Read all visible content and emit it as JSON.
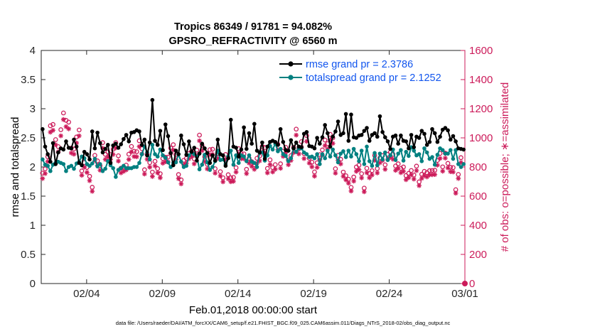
{
  "chart_data": {
    "type": "line",
    "title": "Tropics 86349 / 91781 = 94.082%",
    "subtitle": "GPSRO_REFRACTIVITY @ 6560 m",
    "xlabel": "Feb.01,2018 00:00:00 start",
    "ylabel": "rmse and totalspread",
    "ylabel_right": "# of obs: o=possible; ∗=assimilated",
    "footnote": "data file: /Users/raeder/DAI/ATM_forcXX/CAM6_setup/f.e21.FHIST_BGC.f09_025.CAM6assim.011/Diags_NTrS_2018-02/obs_diag_output.nc",
    "x_tick_labels": [
      "02/04",
      "02/09",
      "02/14",
      "02/19",
      "02/24",
      "03/01"
    ],
    "x_tick_days": [
      3,
      8,
      13,
      18,
      23,
      28
    ],
    "xlim_days": [
      0,
      28
    ],
    "y_ticks": [
      "0",
      "0.5",
      "1",
      "1.5",
      "2",
      "2.5",
      "3",
      "3.5",
      "4"
    ],
    "ylim": [
      0,
      4
    ],
    "y_right_ticks": [
      "0",
      "200",
      "400",
      "600",
      "800",
      "1000",
      "1200",
      "1400",
      "1600"
    ],
    "ylim_right": [
      0,
      1600
    ],
    "legend": [
      "rmse grand pr = 2.3786",
      "totalspread grand pr = 2.1252"
    ],
    "legend_position": "top-right",
    "colors": {
      "rmse": "#000000",
      "spread": "#008080",
      "obs": "#cc1b5a",
      "legend_text": "#1155ee"
    },
    "series": [
      {
        "name": "rmse",
        "values": [
          2.65,
          2.35,
          2.22,
          2.09,
          2.41,
          2.05,
          2.25,
          2.32,
          2.3,
          2.44,
          2.33,
          2.32,
          2.47,
          2.35,
          2.07,
          2.03,
          2.26,
          2.22,
          2.13,
          2.61,
          2.32,
          2.59,
          2.41,
          2.25,
          2.31,
          2.38,
          2.07,
          2.37,
          2.4,
          2.33,
          2.39,
          2.48,
          2.55,
          2.44,
          2.59,
          2.6,
          2.63,
          2.61,
          2.38,
          2.47,
          2.2,
          2.42,
          3.15,
          2.45,
          2.38,
          2.62,
          2.29,
          2.73,
          2.53,
          2.24,
          2.03,
          2.28,
          2.22,
          2.54,
          2.39,
          2.21,
          2.44,
          2.26,
          2.33,
          2.11,
          2.23,
          2.4,
          2.32,
          2.24,
          2.07,
          2.2,
          2.11,
          2.47,
          2.22,
          2.2,
          2.02,
          2.15,
          2.81,
          2.35,
          2.33,
          2.18,
          2.3,
          2.68,
          2.31,
          2.58,
          2.4,
          2.74,
          2.28,
          2.25,
          2.42,
          2.14,
          2.35,
          2.43,
          2.45,
          2.43,
          2.38,
          2.65,
          2.43,
          2.29,
          2.28,
          2.46,
          2.32,
          2.42,
          2.35,
          2.34,
          2.57,
          2.6,
          2.36,
          2.35,
          2.32,
          2.5,
          2.4,
          2.51,
          2.72,
          2.58,
          2.35,
          2.52,
          2.61,
          2.78,
          2.55,
          2.58,
          2.91,
          2.45,
          2.9,
          2.51,
          2.5,
          2.54,
          2.55,
          2.62,
          2.67,
          2.45,
          2.55,
          2.58,
          2.52,
          2.87,
          2.6,
          2.51,
          2.44,
          2.31,
          2.52,
          2.54,
          2.4,
          2.54,
          2.45,
          2.44,
          2.32,
          2.55,
          2.34,
          2.52,
          2.5,
          2.62,
          2.57,
          2.38,
          2.43,
          2.65,
          2.58,
          2.43,
          2.52,
          2.64,
          2.67,
          2.63,
          2.47,
          2.53,
          2.44,
          2.32,
          2.31,
          2.3
        ]
      },
      {
        "name": "totalspread",
        "values": [
          2.13,
          2.04,
          2.02,
          1.93,
          2.04,
          2.07,
          2.09,
          2.07,
          2.05,
          1.93,
          2.0,
          2.02,
          1.97,
          2.06,
          2.09,
          2.18,
          2.15,
          2.05,
          2.02,
          2.06,
          2.14,
          2.01,
          2.05,
          1.93,
          1.97,
          2.1,
          2.03,
          1.98,
          1.83,
          1.95,
          1.98,
          2.02,
          1.98,
          1.98,
          1.98,
          2.0,
          2.0,
          2.07,
          2.22,
          2.35,
          2.25,
          2.13,
          2.38,
          2.22,
          2.18,
          2.3,
          2.2,
          2.16,
          2.08,
          2.0,
          2.07,
          2.08,
          2.22,
          2.09,
          2.0,
          2.02,
          2.2,
          2.25,
          2.22,
          2.18,
          1.96,
          2.04,
          2.21,
          2.08,
          1.95,
          2.0,
          2.1,
          2.28,
          2.12,
          2.13,
          2.05,
          2.18,
          2.28,
          2.04,
          2.2,
          2.07,
          2.2,
          2.18,
          2.1,
          2.2,
          2.09,
          2.07,
          2.0,
          2.25,
          2.25,
          2.11,
          2.2,
          2.36,
          2.3,
          2.4,
          2.27,
          2.31,
          2.22,
          2.19,
          2.1,
          2.15,
          2.32,
          2.26,
          2.32,
          2.32,
          2.25,
          2.22,
          2.17,
          2.18,
          2.15,
          2.22,
          2.05,
          2.22,
          2.15,
          2.28,
          2.18,
          2.3,
          2.2,
          2.08,
          2.23,
          2.27,
          2.17,
          2.28,
          2.18,
          2.31,
          2.22,
          2.1,
          2.28,
          2.05,
          2.35,
          2.1,
          2.02,
          2.24,
          2.03,
          2.23,
          2.13,
          2.25,
          2.12,
          2.2,
          2.3,
          2.12,
          2.23,
          2.29,
          2.11,
          2.26,
          2.19,
          2.34,
          2.28,
          2.2,
          2.22,
          2.1,
          2.32,
          2.25,
          2.14,
          2.17,
          2.04,
          2.21,
          2.32,
          2.29,
          2.23,
          2.23,
          2.29,
          2.14,
          2.29,
          2.05,
          2.0,
          2.05
        ]
      },
      {
        "name": "possible",
        "values": [
          758,
          787,
          870,
          1083,
          1092,
          988,
          940,
          1056,
          1171,
          1120,
          1108,
          930,
          923,
          1006,
          1054,
          773,
          830,
          797,
          736,
          661,
          880,
          842,
          809,
          967,
          887,
          903,
          885,
          922,
          968,
          877,
          792,
          800,
          813,
          888,
          941,
          908,
          905,
          980,
          926,
          781,
          888,
          830,
          765,
          839,
          789,
          754,
          858,
          867,
          868,
          930,
          953,
          886,
          748,
          712,
          846,
          859,
          892,
          908,
          856,
          916,
          1019,
          948,
          871,
          818,
          919,
          922,
          788,
          893,
          768,
          726,
          886,
          747,
          726,
          729,
          795,
          926,
          891,
          890,
          784,
          860,
          837,
          815,
          860,
          875,
          940,
          934,
          790,
          849,
          796,
          816,
          956,
          822,
          908,
          935,
          848,
          878,
          935,
          1060,
          925,
          974,
          892,
          1015,
          860,
          833,
          766,
          829,
          885,
          917,
          985,
          960,
          1024,
          1000,
          788,
          880,
          853,
          765,
          740,
          716,
          660,
          731,
          800,
          813,
          754,
          655,
          791,
          755,
          775,
          879,
          789,
          862,
          878,
          815,
          887,
          901,
          887,
          807,
          822,
          791,
          800,
          741,
          756,
          776,
          745,
          806,
          698,
          750,
          770,
          761,
          775,
          776,
          778,
          845,
          893,
          801,
          895,
          825,
          798,
          796,
          644,
          749,
          864
        ]
      },
      {
        "name": "assimilated",
        "values": [
          721,
          755,
          837,
          1039,
          1052,
          953,
          904,
          1014,
          1126,
          1077,
          1062,
          896,
          888,
          965,
          1014,
          743,
          799,
          763,
          706,
          633,
          844,
          811,
          778,
          929,
          852,
          868,
          852,
          886,
          931,
          841,
          760,
          770,
          780,
          852,
          904,
          872,
          870,
          940,
          890,
          752,
          853,
          799,
          735,
          808,
          760,
          726,
          826,
          836,
          834,
          893,
          916,
          851,
          720,
          684,
          815,
          826,
          857,
          873,
          822,
          880,
          980,
          912,
          838,
          787,
          883,
          887,
          758,
          860,
          739,
          698,
          852,
          719,
          699,
          702,
          765,
          890,
          857,
          856,
          755,
          827,
          805,
          784,
          827,
          842,
          904,
          898,
          760,
          817,
          766,
          785,
          919,
          791,
          873,
          899,
          816,
          845,
          899,
          1019,
          890,
          937,
          858,
          976,
          827,
          801,
          737,
          797,
          851,
          882,
          947,
          923,
          985,
          962,
          758,
          846,
          821,
          736,
          712,
          689,
          635,
          703,
          770,
          782,
          725,
          630,
          761,
          726,
          745,
          845,
          759,
          829,
          845,
          784,
          853,
          867,
          853,
          777,
          790,
          761,
          770,
          713,
          727,
          747,
          717,
          775,
          672,
          722,
          741,
          732,
          746,
          747,
          748,
          813,
          859,
          771,
          861,
          794,
          768,
          766,
          620,
          721,
          831
        ]
      }
    ]
  }
}
